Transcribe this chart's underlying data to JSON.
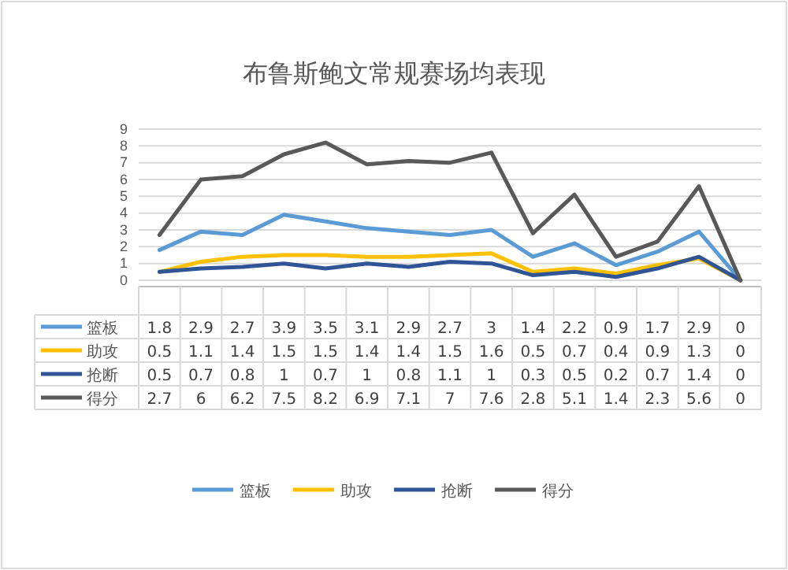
{
  "chart_data": {
    "type": "line",
    "title": "布鲁斯鲍文常规赛场均表现",
    "categories": [
      null,
      null,
      null,
      null,
      null,
      null,
      null,
      null,
      null,
      null,
      null,
      null,
      null,
      null,
      null
    ],
    "series": [
      {
        "name": "篮板",
        "color": "#5b9bd5",
        "values": [
          1.8,
          2.9,
          2.7,
          3.9,
          3.5,
          3.1,
          2.9,
          2.7,
          3,
          1.4,
          2.2,
          0.9,
          1.7,
          2.9,
          0
        ]
      },
      {
        "name": "助攻",
        "color": "#ffc000",
        "values": [
          0.5,
          1.1,
          1.4,
          1.5,
          1.5,
          1.4,
          1.4,
          1.5,
          1.6,
          0.5,
          0.7,
          0.4,
          0.9,
          1.3,
          0
        ]
      },
      {
        "name": "抢断",
        "color": "#2f5597",
        "values": [
          0.5,
          0.7,
          0.8,
          1,
          0.7,
          1,
          0.8,
          1.1,
          1,
          0.3,
          0.5,
          0.2,
          0.7,
          1.4,
          0
        ]
      },
      {
        "name": "得分",
        "color": "#595959",
        "values": [
          2.7,
          6,
          6.2,
          7.5,
          8.2,
          6.9,
          7.1,
          7,
          7.6,
          2.8,
          5.1,
          1.4,
          2.3,
          5.6,
          0
        ]
      }
    ],
    "ylim": [
      0,
      9
    ],
    "yticks": [
      0,
      1,
      2,
      3,
      4,
      5,
      6,
      7,
      8,
      9
    ],
    "grid": "y",
    "data_labels": true,
    "legend": "bottom",
    "marker": "none",
    "line_style": "solid"
  }
}
